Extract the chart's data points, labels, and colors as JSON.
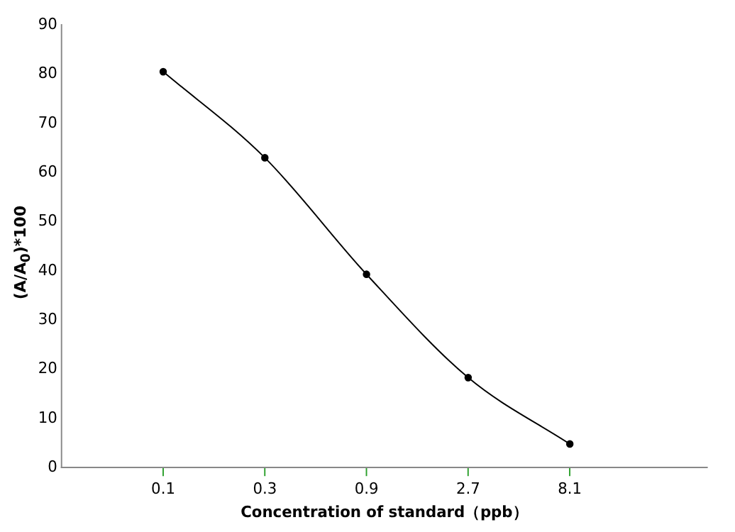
{
  "chart_data": {
    "type": "line",
    "xlabel": "Concentration of standard（ppb）",
    "ylabel": "(A/A$_{0}$)*100",
    "categories": [
      "0.1",
      "0.3",
      "0.9",
      "2.7",
      "8.1"
    ],
    "series": [
      {
        "color": "#000000",
        "values": [
          80.5,
          63,
          39.3,
          18.3,
          4.8
        ]
      }
    ],
    "ylim": [
      0,
      90
    ],
    "yticks": [
      0,
      10,
      20,
      30,
      40,
      50,
      60,
      70,
      80,
      90
    ],
    "grid": false,
    "legend": false,
    "marker": "circle",
    "line_style": "solid"
  }
}
